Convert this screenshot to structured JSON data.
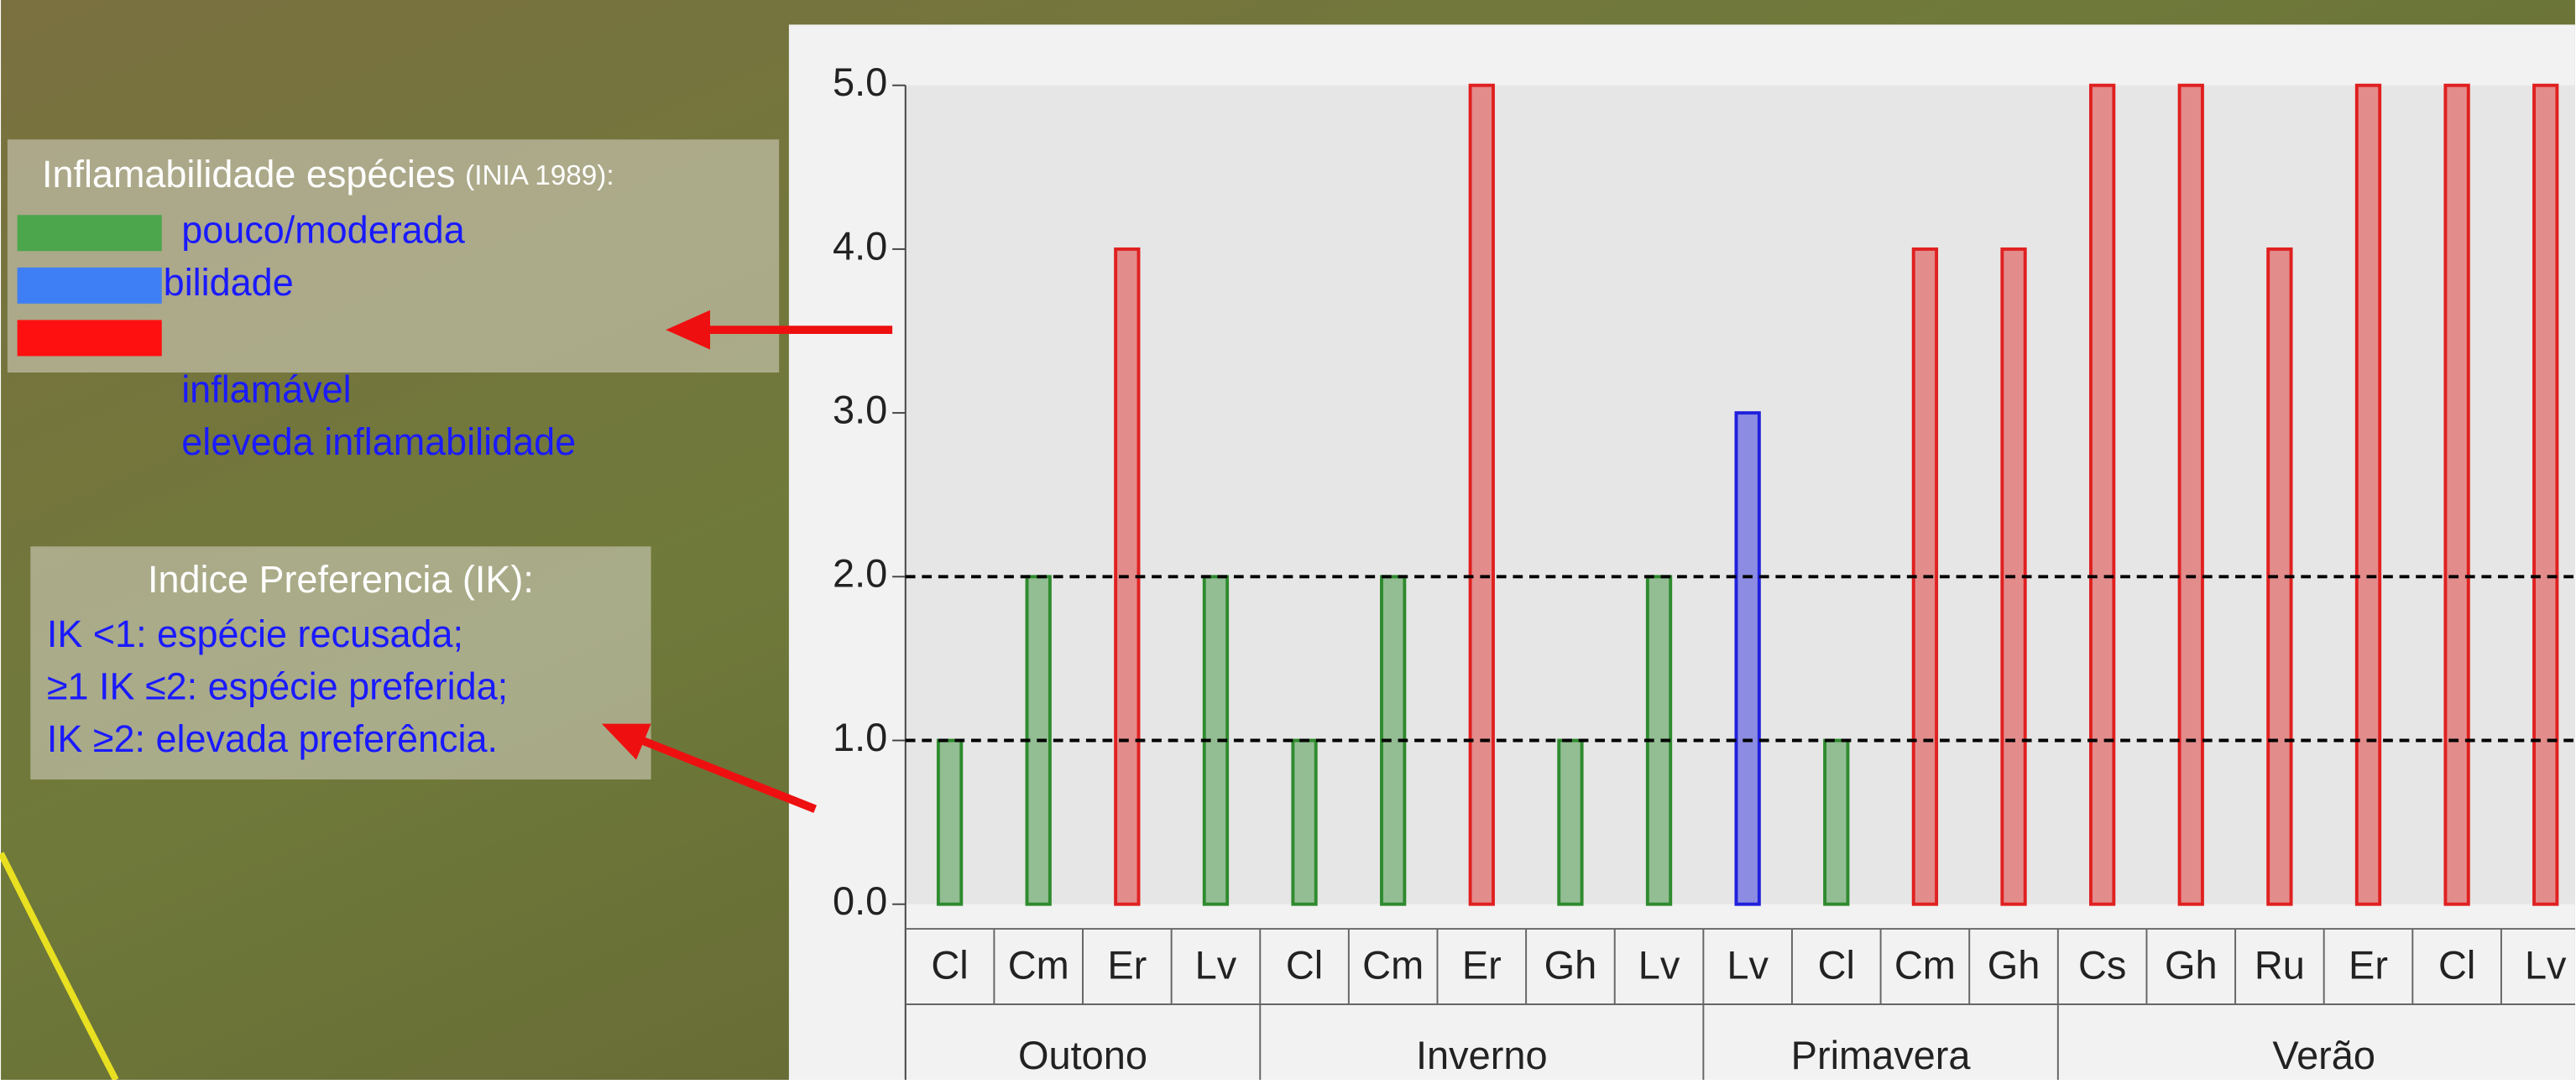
{
  "chart_data": {
    "type": "bar",
    "ylim": [
      0,
      5
    ],
    "yticks": [
      {
        "value": 0,
        "label": "0.0"
      },
      {
        "value": 1,
        "label": "1.0"
      },
      {
        "value": 2,
        "label": "2.0"
      },
      {
        "value": 3,
        "label": "3.0"
      },
      {
        "value": 4,
        "label": "4.0"
      },
      {
        "value": 5,
        "label": "5.0"
      }
    ],
    "reference_lines": [
      1,
      2
    ],
    "groups": [
      {
        "label": "Outono",
        "categories": [
          "Cl",
          "Cm",
          "Er",
          "Lv"
        ],
        "values": [
          1,
          2,
          4,
          2
        ],
        "colors": [
          "#2e8b2e",
          "#2e8b2e",
          "#e02020",
          "#2e8b2e"
        ]
      },
      {
        "label": "Inverno",
        "categories": [
          "Cl",
          "Cm",
          "Er",
          "Gh",
          "Lv"
        ],
        "values": [
          1,
          2,
          5,
          1,
          2
        ],
        "colors": [
          "#2e8b2e",
          "#2e8b2e",
          "#e02020",
          "#2e8b2e",
          "#2e8b2e"
        ]
      },
      {
        "label": "Primavera",
        "categories": [
          "Lv",
          "Cl",
          "Cm",
          "Gh"
        ],
        "values": [
          3,
          1,
          4,
          4
        ],
        "colors": [
          "#2020dd",
          "#2e8b2e",
          "#e02020",
          "#e02020"
        ]
      },
      {
        "label": "Verão",
        "categories": [
          "Cs",
          "Gh",
          "Ru",
          "Er",
          "Cl",
          "Lv"
        ],
        "values": [
          5,
          5,
          4,
          5,
          5,
          5
        ],
        "colors": [
          "#e02020",
          "#e02020",
          "#e02020",
          "#e02020",
          "#e02020",
          "#e02020"
        ]
      }
    ],
    "legend": {
      "title": "Inflamabilidade espécies",
      "title_note": "(INIA 1989):",
      "items": [
        {
          "color": "#4ca64c",
          "label": "pouco/moderada"
        },
        {
          "color": "#3f7ff5",
          "label": "bilidade"
        },
        {
          "color": "#ff1010"
        }
      ],
      "extra_labels": [
        "inflamável",
        "eleveda inflamabilidade"
      ]
    },
    "preference_note": {
      "title": "Indice Preferencia (IK):",
      "lines": [
        "IK <1: espécie recusada;",
        "≥1 IK ≤2: espécie preferida;",
        "IK ≥2: elevada preferência."
      ]
    }
  }
}
